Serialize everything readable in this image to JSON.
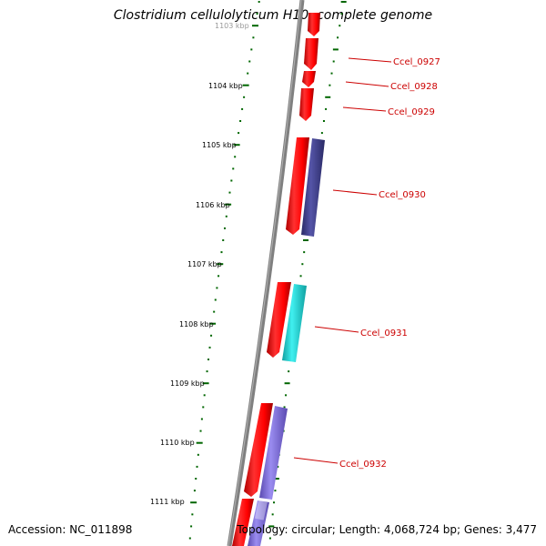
{
  "title": "Clostridium cellulolyticum H10, complete genome",
  "footer": {
    "accession": "Accession: NC_011898",
    "topology": "Topology: circular; Length: 4,068,724 bp; Genes: 3,477"
  },
  "scale_labels": [
    "1103 kbp",
    "1104 kbp",
    "1105 kbp",
    "1106 kbp",
    "1107 kbp",
    "1108 kbp",
    "1109 kbp",
    "1110 kbp",
    "1111 kbp"
  ],
  "gene_labels": [
    "Ccel_0927",
    "Ccel_0928",
    "Ccel_0929",
    "Ccel_0930",
    "Ccel_0931",
    "Ccel_0932"
  ],
  "colors": {
    "gene_forward": "#ff0000",
    "gene_dark_blue": "#3c3c8c",
    "gene_cyan": "#1fd0d0",
    "gene_blue": "#7c6cdc",
    "label": "#cc0000",
    "tick": "#006600",
    "backbone": "#808080"
  }
}
